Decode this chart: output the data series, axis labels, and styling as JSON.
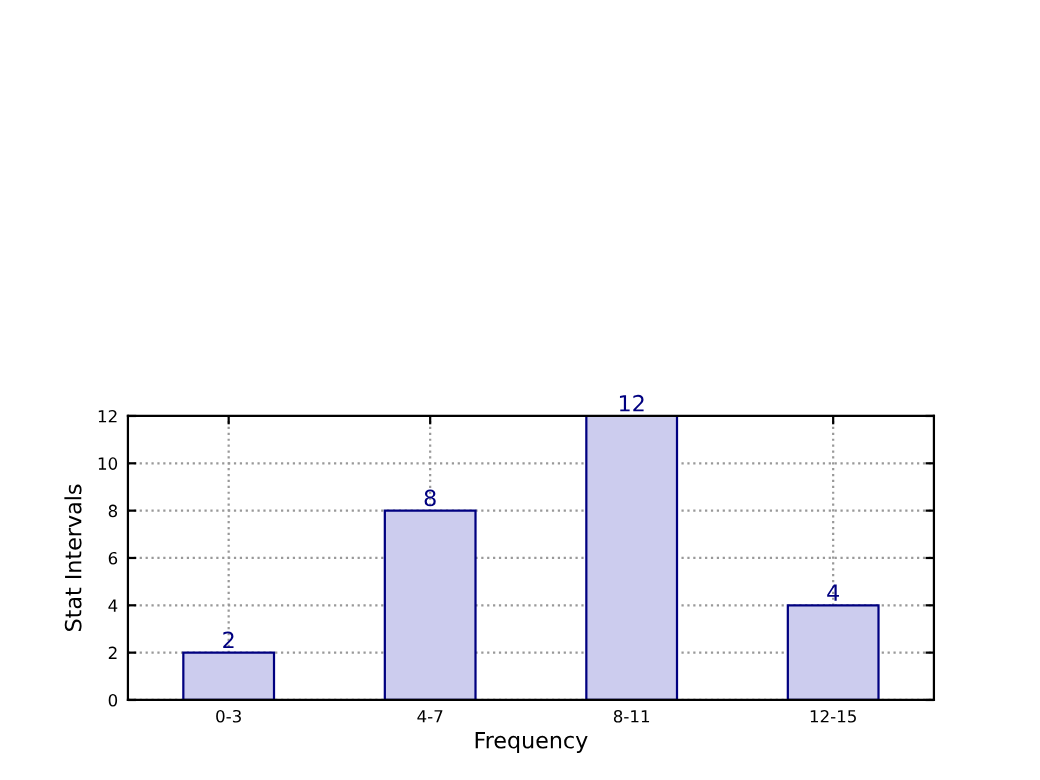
{
  "chart_data": {
    "type": "bar",
    "xlabel": "Frequency",
    "ylabel": "Stat Intervals",
    "categories": [
      "0-3",
      "4-7",
      "8-11",
      "12-15"
    ],
    "values": [
      2,
      8,
      12,
      4
    ],
    "color": "#ccccee",
    "ylim": [
      0,
      12
    ],
    "yticks": [
      0,
      2,
      4,
      6,
      8,
      10,
      12
    ],
    "grid": true,
    "data_labels": true
  }
}
